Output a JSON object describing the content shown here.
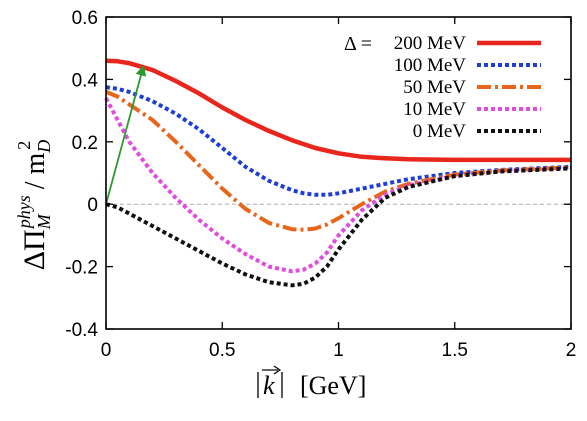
{
  "chart_data": {
    "type": "line",
    "xlabel_text": "[GeV]",
    "ylabel_main": "ΔΠ",
    "ylabel_sup": "phys",
    "ylabel_sub": "M",
    "ylabel_den": "/ m",
    "ylabel_den_sub": "D",
    "ylabel_den_sup": "2",
    "xlim": [
      0,
      2
    ],
    "ylim": [
      -0.4,
      0.6
    ],
    "x_ticks": [
      "0",
      "0.5",
      "1",
      "1.5",
      "2"
    ],
    "y_ticks": [
      "0.6",
      "0.4",
      "0.2",
      "0",
      "-0.2",
      "-0.4"
    ],
    "zero_reference_line": true,
    "legend_position": "top-right",
    "legend_prefix": "Δ =",
    "series": [
      {
        "name": "200 MeV",
        "color": "#e8261c",
        "style": "solid",
        "x": [
          0,
          0.05,
          0.1,
          0.2,
          0.3,
          0.4,
          0.5,
          0.6,
          0.7,
          0.8,
          0.9,
          1.0,
          1.1,
          1.2,
          1.3,
          1.5,
          1.7,
          2.0
        ],
        "y": [
          0.46,
          0.458,
          0.452,
          0.43,
          0.395,
          0.355,
          0.31,
          0.27,
          0.235,
          0.205,
          0.18,
          0.163,
          0.152,
          0.147,
          0.144,
          0.142,
          0.142,
          0.142
        ]
      },
      {
        "name": "100 MeV",
        "color": "#1f3ed8",
        "style": "dotted",
        "x": [
          0,
          0.05,
          0.1,
          0.2,
          0.3,
          0.4,
          0.5,
          0.6,
          0.7,
          0.8,
          0.85,
          0.9,
          0.95,
          1.0,
          1.1,
          1.2,
          1.3,
          1.5,
          1.7,
          2.0
        ],
        "y": [
          0.375,
          0.37,
          0.36,
          0.33,
          0.29,
          0.24,
          0.18,
          0.12,
          0.075,
          0.045,
          0.035,
          0.03,
          0.03,
          0.035,
          0.05,
          0.065,
          0.08,
          0.1,
          0.11,
          0.12
        ]
      },
      {
        "name": "50 MeV",
        "color": "#e8661c",
        "style": "dashdot",
        "x": [
          0,
          0.05,
          0.1,
          0.2,
          0.3,
          0.4,
          0.5,
          0.6,
          0.7,
          0.8,
          0.85,
          0.9,
          0.95,
          1.0,
          1.1,
          1.2,
          1.3,
          1.5,
          1.7,
          2.0
        ],
        "y": [
          0.36,
          0.345,
          0.32,
          0.27,
          0.2,
          0.125,
          0.05,
          -0.015,
          -0.06,
          -0.08,
          -0.082,
          -0.078,
          -0.065,
          -0.045,
          0.0,
          0.04,
          0.065,
          0.095,
          0.108,
          0.118
        ]
      },
      {
        "name": "10 MeV",
        "color": "#e04be0",
        "style": "dotted",
        "x": [
          0,
          0.05,
          0.1,
          0.15,
          0.2,
          0.3,
          0.4,
          0.5,
          0.6,
          0.7,
          0.8,
          0.85,
          0.9,
          0.95,
          1.0,
          1.1,
          1.2,
          1.3,
          1.5,
          1.7,
          2.0
        ],
        "y": [
          0.34,
          0.27,
          0.2,
          0.15,
          0.1,
          0.02,
          -0.05,
          -0.11,
          -0.16,
          -0.2,
          -0.215,
          -0.21,
          -0.19,
          -0.155,
          -0.1,
          -0.02,
          0.03,
          0.06,
          0.09,
          0.105,
          0.115
        ]
      },
      {
        "name": "0 MeV",
        "color": "#111111",
        "style": "dotted",
        "x": [
          0,
          0.05,
          0.1,
          0.2,
          0.3,
          0.4,
          0.5,
          0.6,
          0.7,
          0.8,
          0.85,
          0.9,
          0.95,
          1.0,
          1.1,
          1.2,
          1.3,
          1.5,
          1.7,
          2.0
        ],
        "y": [
          0.0,
          -0.01,
          -0.03,
          -0.07,
          -0.11,
          -0.15,
          -0.19,
          -0.225,
          -0.25,
          -0.26,
          -0.255,
          -0.235,
          -0.2,
          -0.145,
          -0.05,
          0.02,
          0.055,
          0.09,
          0.105,
          0.115
        ]
      }
    ],
    "annotation_arrows": [
      {
        "color": "#2a9a2a",
        "from": [
          0,
          0.0
        ],
        "to": [
          0.16,
          0.44
        ]
      }
    ]
  }
}
